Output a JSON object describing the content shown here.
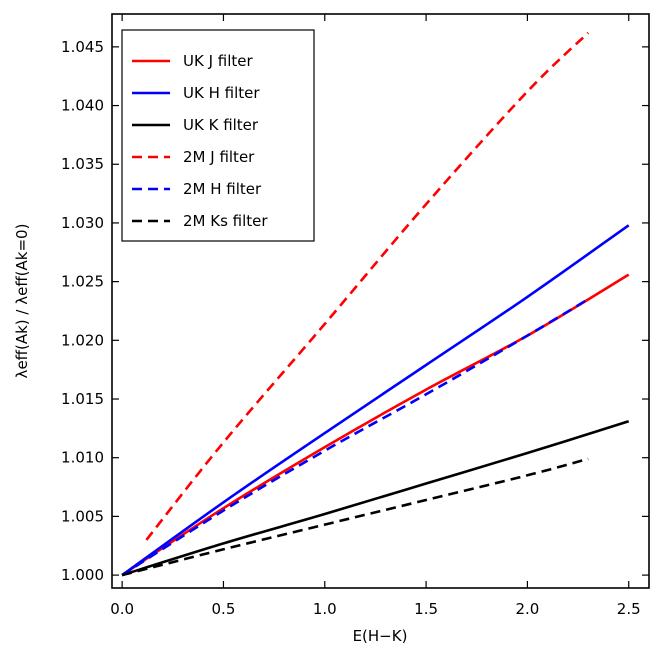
{
  "chart_data": {
    "type": "line",
    "title": "",
    "xlabel": "E(H−K)",
    "ylabel": "λeff(Ak) / λeff(Ak=0)",
    "xlim": [
      -0.05,
      2.6
    ],
    "ylim": [
      0.9989,
      1.0478
    ],
    "xticks": [
      0.0,
      0.5,
      1.0,
      1.5,
      2.0,
      2.5
    ],
    "xtick_labels": [
      "0.0",
      "0.5",
      "1.0",
      "1.5",
      "2.0",
      "2.5"
    ],
    "yticks": [
      1.0,
      1.005,
      1.01,
      1.015,
      1.02,
      1.025,
      1.03,
      1.035,
      1.04,
      1.045
    ],
    "ytick_labels": [
      "1.000",
      "1.005",
      "1.010",
      "1.015",
      "1.020",
      "1.025",
      "1.030",
      "1.035",
      "1.040",
      "1.045"
    ],
    "legend_position": "top-left",
    "series": [
      {
        "name": "UK J filter",
        "color": "#ff0000",
        "dash": "solid",
        "x": [
          0.0,
          0.5,
          1.0,
          1.5,
          2.0,
          2.5
        ],
        "y": [
          1.0,
          1.0057,
          1.0109,
          1.0158,
          1.0204,
          1.0256
        ]
      },
      {
        "name": "UK H filter",
        "color": "#0000ff",
        "dash": "solid",
        "x": [
          0.0,
          0.5,
          1.0,
          1.5,
          2.0,
          2.5
        ],
        "y": [
          1.0,
          1.0062,
          1.0121,
          1.0179,
          1.0237,
          1.0298
        ]
      },
      {
        "name": "UK K filter",
        "color": "#000000",
        "dash": "solid",
        "x": [
          0.0,
          0.5,
          1.0,
          1.5,
          2.0,
          2.5
        ],
        "y": [
          1.0,
          1.0027,
          1.0052,
          1.0078,
          1.0104,
          1.0131
        ]
      },
      {
        "name": "2M J filter",
        "color": "#ff0000",
        "dash": "dashed",
        "x": [
          0.12,
          0.5,
          1.0,
          1.5,
          2.0,
          2.3
        ],
        "y": [
          1.003,
          1.0113,
          1.0214,
          1.0316,
          1.0412,
          1.0462
        ]
      },
      {
        "name": "2M H filter",
        "color": "#0000ff",
        "dash": "dashed",
        "x": [
          0.0,
          0.5,
          1.0,
          1.5,
          2.0,
          2.3
        ],
        "y": [
          1.0,
          1.0055,
          1.0106,
          1.0154,
          1.0204,
          1.0235
        ]
      },
      {
        "name": "2M Ks filter",
        "color": "#000000",
        "dash": "dashed",
        "x": [
          0.0,
          0.5,
          1.0,
          1.5,
          2.0,
          2.3
        ],
        "y": [
          1.0,
          1.0022,
          1.0043,
          1.0064,
          1.0085,
          1.0099
        ]
      }
    ]
  }
}
